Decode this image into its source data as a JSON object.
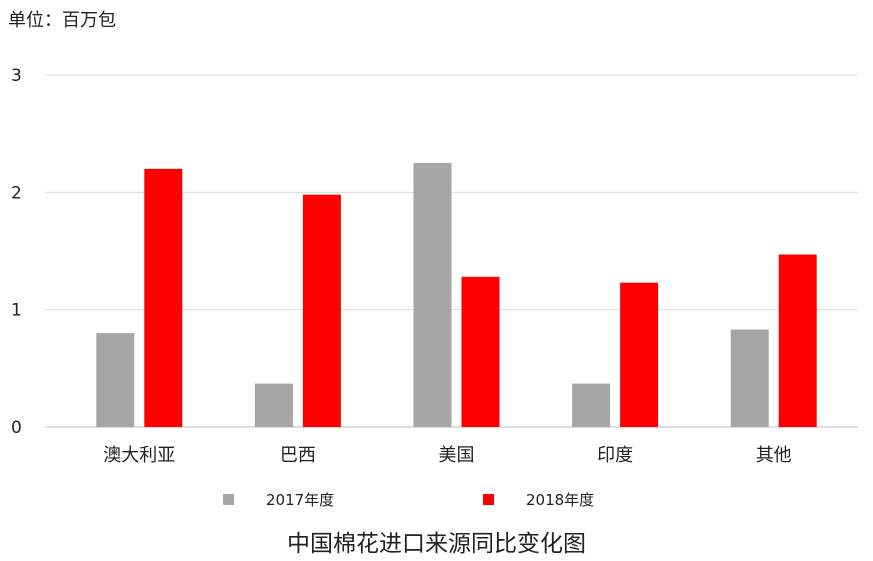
{
  "unit_label": "单位：百万包",
  "chart_data": {
    "type": "bar",
    "title": "中国棉花进口来源同比变化图",
    "xlabel": "",
    "ylabel": "",
    "ylim": [
      0,
      3
    ],
    "yticks": [
      0,
      1,
      2,
      3
    ],
    "grid": true,
    "legend_position": "bottom",
    "categories": [
      "澳大利亚",
      "巴西",
      "美国",
      "印度",
      "其他"
    ],
    "series": [
      {
        "name": "2017年度",
        "color": "#a6a6a6",
        "values": [
          0.8,
          0.37,
          2.25,
          0.37,
          0.83
        ]
      },
      {
        "name": "2018年度",
        "color": "#ff0000",
        "values": [
          2.2,
          1.98,
          1.28,
          1.23,
          1.47
        ]
      }
    ]
  }
}
